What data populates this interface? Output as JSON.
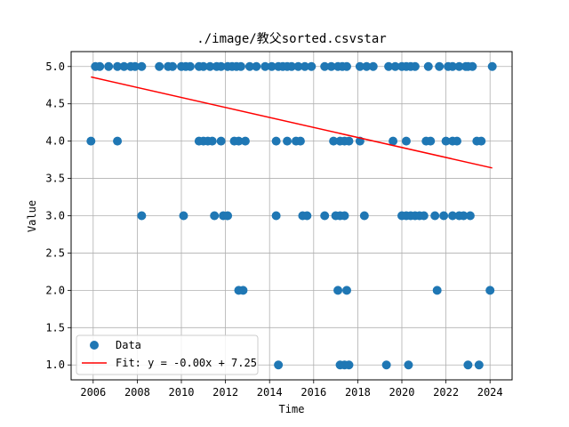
{
  "chart_data": {
    "type": "scatter",
    "title": "./image/教父sorted.csvstar",
    "xlabel": "Time",
    "ylabel": "Value",
    "xlim": [
      2005.0,
      2025.0
    ],
    "ylim": [
      0.8,
      5.2
    ],
    "xticks": [
      2006,
      2008,
      2010,
      2012,
      2014,
      2016,
      2018,
      2020,
      2022,
      2024
    ],
    "xtick_labels": [
      "2006",
      "2008",
      "2010",
      "2012",
      "2014",
      "2016",
      "2018",
      "2020",
      "2022",
      "2024"
    ],
    "yticks": [
      1.0,
      1.5,
      2.0,
      2.5,
      3.0,
      3.5,
      4.0,
      4.5,
      5.0
    ],
    "ytick_labels": [
      "1.0",
      "1.5",
      "2.0",
      "2.5",
      "3.0",
      "3.5",
      "4.0",
      "4.5",
      "5.0"
    ],
    "grid": true,
    "legend_position": "lower-left",
    "series": [
      {
        "name": "Data",
        "kind": "scatter",
        "color": "#1f77b4",
        "points": [
          [
            2006.1,
            5
          ],
          [
            2006.3,
            5
          ],
          [
            2006.7,
            5
          ],
          [
            2007.1,
            5
          ],
          [
            2007.4,
            5
          ],
          [
            2007.7,
            5
          ],
          [
            2007.9,
            5
          ],
          [
            2008.2,
            5
          ],
          [
            2009.0,
            5
          ],
          [
            2009.4,
            5
          ],
          [
            2009.6,
            5
          ],
          [
            2010.0,
            5
          ],
          [
            2010.2,
            5
          ],
          [
            2010.4,
            5
          ],
          [
            2010.8,
            5
          ],
          [
            2011.0,
            5
          ],
          [
            2011.3,
            5
          ],
          [
            2011.6,
            5
          ],
          [
            2011.8,
            5
          ],
          [
            2012.1,
            5
          ],
          [
            2012.3,
            5
          ],
          [
            2012.5,
            5
          ],
          [
            2012.7,
            5
          ],
          [
            2013.1,
            5
          ],
          [
            2013.4,
            5
          ],
          [
            2013.8,
            5
          ],
          [
            2014.1,
            5
          ],
          [
            2014.4,
            5
          ],
          [
            2014.6,
            5
          ],
          [
            2014.8,
            5
          ],
          [
            2015.0,
            5
          ],
          [
            2015.3,
            5
          ],
          [
            2015.6,
            5
          ],
          [
            2015.9,
            5
          ],
          [
            2016.5,
            5
          ],
          [
            2016.8,
            5
          ],
          [
            2017.1,
            5
          ],
          [
            2017.3,
            5
          ],
          [
            2017.5,
            5
          ],
          [
            2018.1,
            5
          ],
          [
            2018.4,
            5
          ],
          [
            2018.7,
            5
          ],
          [
            2019.4,
            5
          ],
          [
            2019.7,
            5
          ],
          [
            2020.0,
            5
          ],
          [
            2020.2,
            5
          ],
          [
            2020.4,
            5
          ],
          [
            2020.6,
            5
          ],
          [
            2021.2,
            5
          ],
          [
            2021.7,
            5
          ],
          [
            2022.1,
            5
          ],
          [
            2022.3,
            5
          ],
          [
            2022.6,
            5
          ],
          [
            2022.9,
            5
          ],
          [
            2023.0,
            5
          ],
          [
            2023.2,
            5
          ],
          [
            2024.1,
            5
          ],
          [
            2005.9,
            4
          ],
          [
            2007.1,
            4
          ],
          [
            2010.8,
            4
          ],
          [
            2011.0,
            4
          ],
          [
            2011.2,
            4
          ],
          [
            2011.4,
            4
          ],
          [
            2011.8,
            4
          ],
          [
            2012.4,
            4
          ],
          [
            2012.6,
            4
          ],
          [
            2012.9,
            4
          ],
          [
            2014.3,
            4
          ],
          [
            2014.8,
            4
          ],
          [
            2015.2,
            4
          ],
          [
            2015.4,
            4
          ],
          [
            2016.9,
            4
          ],
          [
            2017.2,
            4
          ],
          [
            2017.4,
            4
          ],
          [
            2017.6,
            4
          ],
          [
            2018.1,
            4
          ],
          [
            2019.6,
            4
          ],
          [
            2020.2,
            4
          ],
          [
            2021.1,
            4
          ],
          [
            2021.3,
            4
          ],
          [
            2022.0,
            4
          ],
          [
            2022.3,
            4
          ],
          [
            2022.5,
            4
          ],
          [
            2023.4,
            4
          ],
          [
            2023.6,
            4
          ],
          [
            2008.2,
            3
          ],
          [
            2010.1,
            3
          ],
          [
            2011.5,
            3
          ],
          [
            2011.9,
            3
          ],
          [
            2012.1,
            3
          ],
          [
            2014.3,
            3
          ],
          [
            2015.5,
            3
          ],
          [
            2015.7,
            3
          ],
          [
            2016.5,
            3
          ],
          [
            2017.0,
            3
          ],
          [
            2017.2,
            3
          ],
          [
            2017.4,
            3
          ],
          [
            2018.3,
            3
          ],
          [
            2020.0,
            3
          ],
          [
            2020.2,
            3
          ],
          [
            2020.4,
            3
          ],
          [
            2020.6,
            3
          ],
          [
            2020.8,
            3
          ],
          [
            2021.0,
            3
          ],
          [
            2021.5,
            3
          ],
          [
            2021.9,
            3
          ],
          [
            2022.3,
            3
          ],
          [
            2022.6,
            3
          ],
          [
            2022.8,
            3
          ],
          [
            2023.1,
            3
          ],
          [
            2012.6,
            2
          ],
          [
            2012.8,
            2
          ],
          [
            2017.1,
            2
          ],
          [
            2017.5,
            2
          ],
          [
            2021.6,
            2
          ],
          [
            2024.0,
            2
          ],
          [
            2014.4,
            1
          ],
          [
            2017.2,
            1
          ],
          [
            2017.4,
            1
          ],
          [
            2017.6,
            1
          ],
          [
            2019.3,
            1
          ],
          [
            2020.3,
            1
          ],
          [
            2023.0,
            1
          ],
          [
            2023.5,
            1
          ]
        ]
      },
      {
        "name": "Fit: y = -0.00x + 7.25",
        "kind": "line",
        "color": "#ff0000",
        "points": [
          [
            2005.9,
            4.86
          ],
          [
            2024.1,
            3.64
          ]
        ]
      }
    ]
  }
}
